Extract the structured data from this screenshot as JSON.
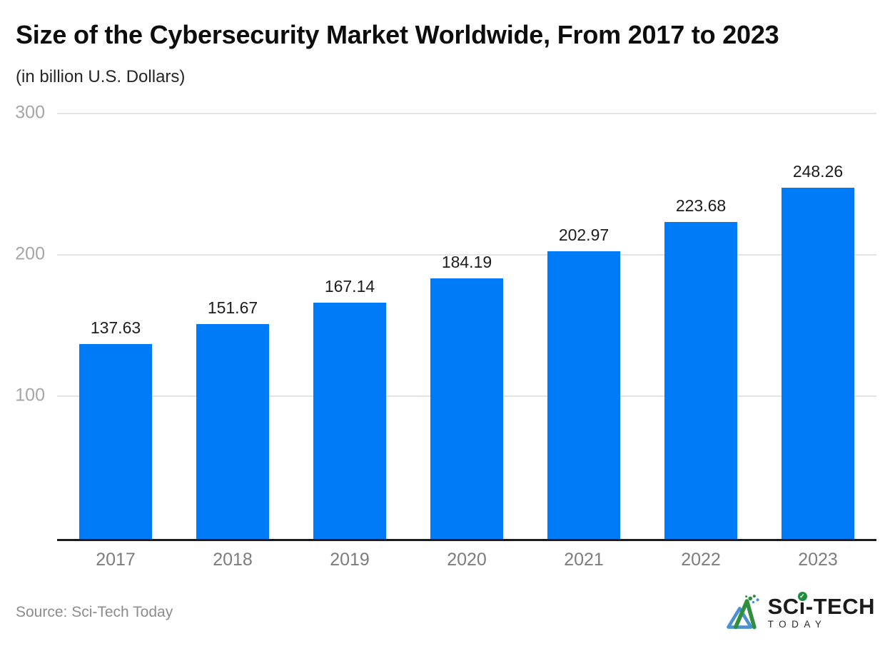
{
  "header": {
    "title": "Size of the Cybersecurity Market Worldwide, From 2017 to 2023",
    "subtitle": "(in billion U.S. Dollars)"
  },
  "chart_data": {
    "type": "bar",
    "categories": [
      "2017",
      "2018",
      "2019",
      "2020",
      "2021",
      "2022",
      "2023"
    ],
    "values": [
      137.63,
      151.67,
      167.14,
      184.19,
      202.97,
      223.68,
      248.26
    ],
    "value_labels": [
      "137.63",
      "151.67",
      "167.14",
      "184.19",
      "202.97",
      "223.68",
      "248.26"
    ],
    "title": "Size of the Cybersecurity Market Worldwide, From 2017 to 2023",
    "subtitle": "(in billion U.S. Dollars)",
    "xlabel": "",
    "ylabel": "",
    "ylim": [
      0,
      300
    ],
    "yticks": [
      100,
      200,
      300
    ],
    "grid": "horizontal",
    "legend": "none",
    "bar_color": "#007bf8",
    "gridline_color": "#e4e4e4",
    "axis_line_color": "#1c1c1c"
  },
  "footer": {
    "source": "Source: Sci-Tech Today",
    "logo": {
      "part1": "SC",
      "part2": "i",
      "part3": "-TECH",
      "line2": "TODAY",
      "badge_glyph": "✓",
      "green": "#2f8f3f",
      "blue": "#4a90d2"
    }
  }
}
